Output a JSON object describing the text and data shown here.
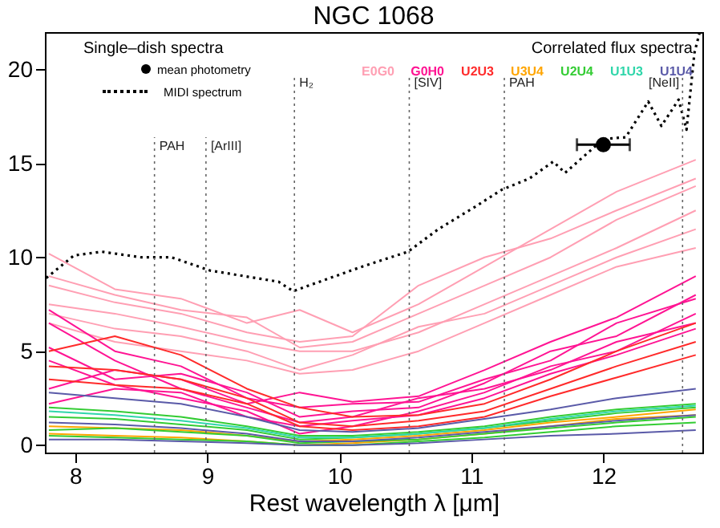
{
  "chart_data": {
    "type": "line",
    "title": "NGC 1068",
    "xlabel": "Rest wavelength λ [μm]",
    "legend_title": "Correlated flux spectra",
    "legend": "top",
    "annotations": [
      "Single–dish spectra"
    ],
    "xlim": [
      7.77,
      12.75
    ],
    "xticks": [
      8,
      9,
      10,
      11,
      12
    ],
    "ylim": [
      -0.4,
      22
    ],
    "yticks": [
      0,
      5,
      10,
      15,
      20
    ],
    "x": [
      7.8,
      8.3,
      8.8,
      9.3,
      9.7,
      10.1,
      10.6,
      11.1,
      11.6,
      12.1,
      12.7
    ],
    "line_style": "solid",
    "series": [
      {
        "name": "E0G0",
        "color": "#ff9fb3",
        "values": [
          10.2,
          8.3,
          7.8,
          6.5,
          7.2,
          6.0,
          7.5,
          9.5,
          11.5,
          13.5,
          15.2
        ]
      },
      {
        "color": "#ff9fb3",
        "values": [
          8.5,
          7.6,
          7.0,
          6.0,
          5.5,
          5.8,
          8.5,
          10.0,
          11.0,
          12.5,
          14.2
        ]
      },
      {
        "color": "#ff9fb3",
        "values": [
          7.5,
          7.0,
          6.3,
          5.5,
          5.0,
          5.0,
          6.0,
          7.5,
          9.0,
          10.5,
          12.5
        ]
      },
      {
        "color": "#ff9fb3",
        "values": [
          7.0,
          6.2,
          5.8,
          5.0,
          4.0,
          4.8,
          6.3,
          7.0,
          8.5,
          10.0,
          11.5
        ]
      },
      {
        "color": "#ff9fb3",
        "values": [
          9.0,
          8.0,
          7.2,
          6.8,
          5.2,
          5.5,
          7.0,
          8.5,
          10.0,
          12.0,
          13.8
        ]
      },
      {
        "color": "#ff9fb3",
        "values": [
          6.5,
          5.5,
          5.0,
          4.5,
          3.8,
          4.0,
          5.0,
          6.5,
          8.0,
          9.5,
          10.5
        ]
      },
      {
        "name": "G0H0",
        "color": "#ff1493",
        "values": [
          7.2,
          5.0,
          4.2,
          2.5,
          2.0,
          2.2,
          2.3,
          3.5,
          4.5,
          6.5,
          7.8
        ]
      },
      {
        "color": "#ff1493",
        "values": [
          5.2,
          3.5,
          3.8,
          2.8,
          1.5,
          1.8,
          2.0,
          3.3,
          5.0,
          5.8,
          8.0
        ]
      },
      {
        "color": "#ff1493",
        "values": [
          6.5,
          4.5,
          3.0,
          2.0,
          1.2,
          1.5,
          2.5,
          3.0,
          4.0,
          5.5,
          6.5
        ]
      },
      {
        "color": "#ff1493",
        "values": [
          3.0,
          4.0,
          3.5,
          2.2,
          2.8,
          2.3,
          2.6,
          4.0,
          5.5,
          6.8,
          9.0
        ]
      },
      {
        "color": "#ff1493",
        "values": [
          4.5,
          3.2,
          2.5,
          1.8,
          0.6,
          1.0,
          1.8,
          2.8,
          4.2,
          5.0,
          7.0
        ]
      },
      {
        "color": "#ff1493",
        "values": [
          2.2,
          3.0,
          2.8,
          1.5,
          1.0,
          1.3,
          1.6,
          2.5,
          3.8,
          4.8,
          6.2
        ]
      },
      {
        "name": "U2U3",
        "color": "#ff2a2a",
        "values": [
          5.0,
          5.8,
          4.8,
          3.0,
          2.0,
          1.5,
          1.6,
          2.2,
          3.5,
          5.0,
          6.5
        ]
      },
      {
        "color": "#ff2a2a",
        "values": [
          4.2,
          4.0,
          3.5,
          2.5,
          1.2,
          1.0,
          1.3,
          1.8,
          3.0,
          4.2,
          5.5
        ]
      },
      {
        "color": "#ff2a2a",
        "values": [
          3.5,
          3.2,
          3.0,
          2.2,
          1.0,
          0.8,
          1.0,
          1.5,
          2.6,
          3.6,
          4.8
        ]
      },
      {
        "name": "U3U4",
        "color": "#ffa500",
        "values": [
          1.0,
          0.9,
          0.8,
          0.5,
          0.2,
          0.3,
          0.5,
          0.8,
          1.2,
          1.5,
          1.9
        ]
      },
      {
        "color": "#ffa500",
        "values": [
          0.6,
          0.5,
          0.4,
          0.2,
          0.0,
          0.1,
          0.3,
          0.6,
          1.0,
          1.4,
          1.6
        ]
      },
      {
        "name": "U2U4",
        "color": "#33cc33",
        "values": [
          2.0,
          1.8,
          1.5,
          1.0,
          0.5,
          0.5,
          0.7,
          1.0,
          1.5,
          1.9,
          2.2
        ]
      },
      {
        "color": "#33cc33",
        "values": [
          1.5,
          1.4,
          1.1,
          0.8,
          0.3,
          0.4,
          0.6,
          0.9,
          1.3,
          1.7,
          2.0
        ]
      },
      {
        "color": "#33cc33",
        "values": [
          0.8,
          0.9,
          0.7,
          0.5,
          0.1,
          0.2,
          0.3,
          0.6,
          0.9,
          1.2,
          1.5
        ]
      },
      {
        "color": "#33cc33",
        "values": [
          0.5,
          0.4,
          0.3,
          0.2,
          0.0,
          0.0,
          0.2,
          0.4,
          0.7,
          1.0,
          1.2
        ]
      },
      {
        "name": "U1U3",
        "color": "#2fd6aa",
        "values": [
          1.8,
          1.6,
          1.3,
          0.9,
          0.4,
          0.4,
          0.6,
          0.9,
          1.4,
          1.8,
          2.1
        ]
      },
      {
        "name": "U1U4",
        "color": "#5a5aa8",
        "values": [
          2.8,
          2.5,
          2.2,
          1.5,
          0.8,
          0.7,
          0.9,
          1.4,
          1.9,
          2.5,
          3.0
        ]
      },
      {
        "color": "#5a5aa8",
        "values": [
          1.2,
          1.1,
          0.9,
          0.6,
          0.2,
          0.2,
          0.4,
          0.7,
          1.0,
          1.3,
          1.6
        ]
      },
      {
        "color": "#5a5aa8",
        "values": [
          0.3,
          0.3,
          0.2,
          0.1,
          0.0,
          0.0,
          0.1,
          0.3,
          0.5,
          0.6,
          0.8
        ]
      },
      {
        "name": "MIDI spectrum",
        "color": "#000000",
        "line_style": "dotted",
        "x": [
          7.78,
          7.99,
          8.2,
          8.5,
          8.73,
          9.02,
          9.54,
          9.65,
          9.77,
          10.17,
          10.52,
          10.75,
          11.03,
          11.23,
          11.44,
          11.62,
          11.71,
          12.0,
          12.17,
          12.34,
          12.44,
          12.57,
          12.63,
          12.69,
          12.73
        ],
        "values": [
          8.9,
          10.1,
          10.3,
          10.0,
          10.0,
          9.3,
          8.7,
          8.2,
          8.5,
          9.5,
          10.3,
          11.5,
          12.7,
          13.6,
          14.2,
          15.1,
          14.5,
          16.3,
          16.4,
          18.3,
          17.0,
          18.4,
          16.8,
          20.9,
          22
        ]
      },
      {
        "name": "mean photometry",
        "type": "scatter",
        "marker": "circle",
        "color": "#000000",
        "x": [
          12.0
        ],
        "values": [
          16.0
        ],
        "xerrors": [
          0.2
        ]
      }
    ],
    "ref_lines": [
      {
        "axis": "x",
        "value": 8.6,
        "label": "PAH",
        "color": "#666666",
        "line_style": "dotted"
      },
      {
        "axis": "x",
        "value": 8.99,
        "label": "[ArIII]",
        "color": "#666666",
        "line_style": "dotted"
      },
      {
        "axis": "x",
        "value": 9.66,
        "label": "H₂",
        "color": "#666666",
        "line_style": "dotted"
      },
      {
        "axis": "x",
        "value": 10.53,
        "label": "[SIV]",
        "color": "#666666",
        "line_style": "dotted"
      },
      {
        "axis": "x",
        "value": 11.25,
        "label": "PAH",
        "color": "#666666",
        "line_style": "dotted"
      },
      {
        "axis": "x",
        "value": 12.6,
        "label": "[NeII]",
        "color": "#666666",
        "line_style": "dotted"
      }
    ]
  }
}
